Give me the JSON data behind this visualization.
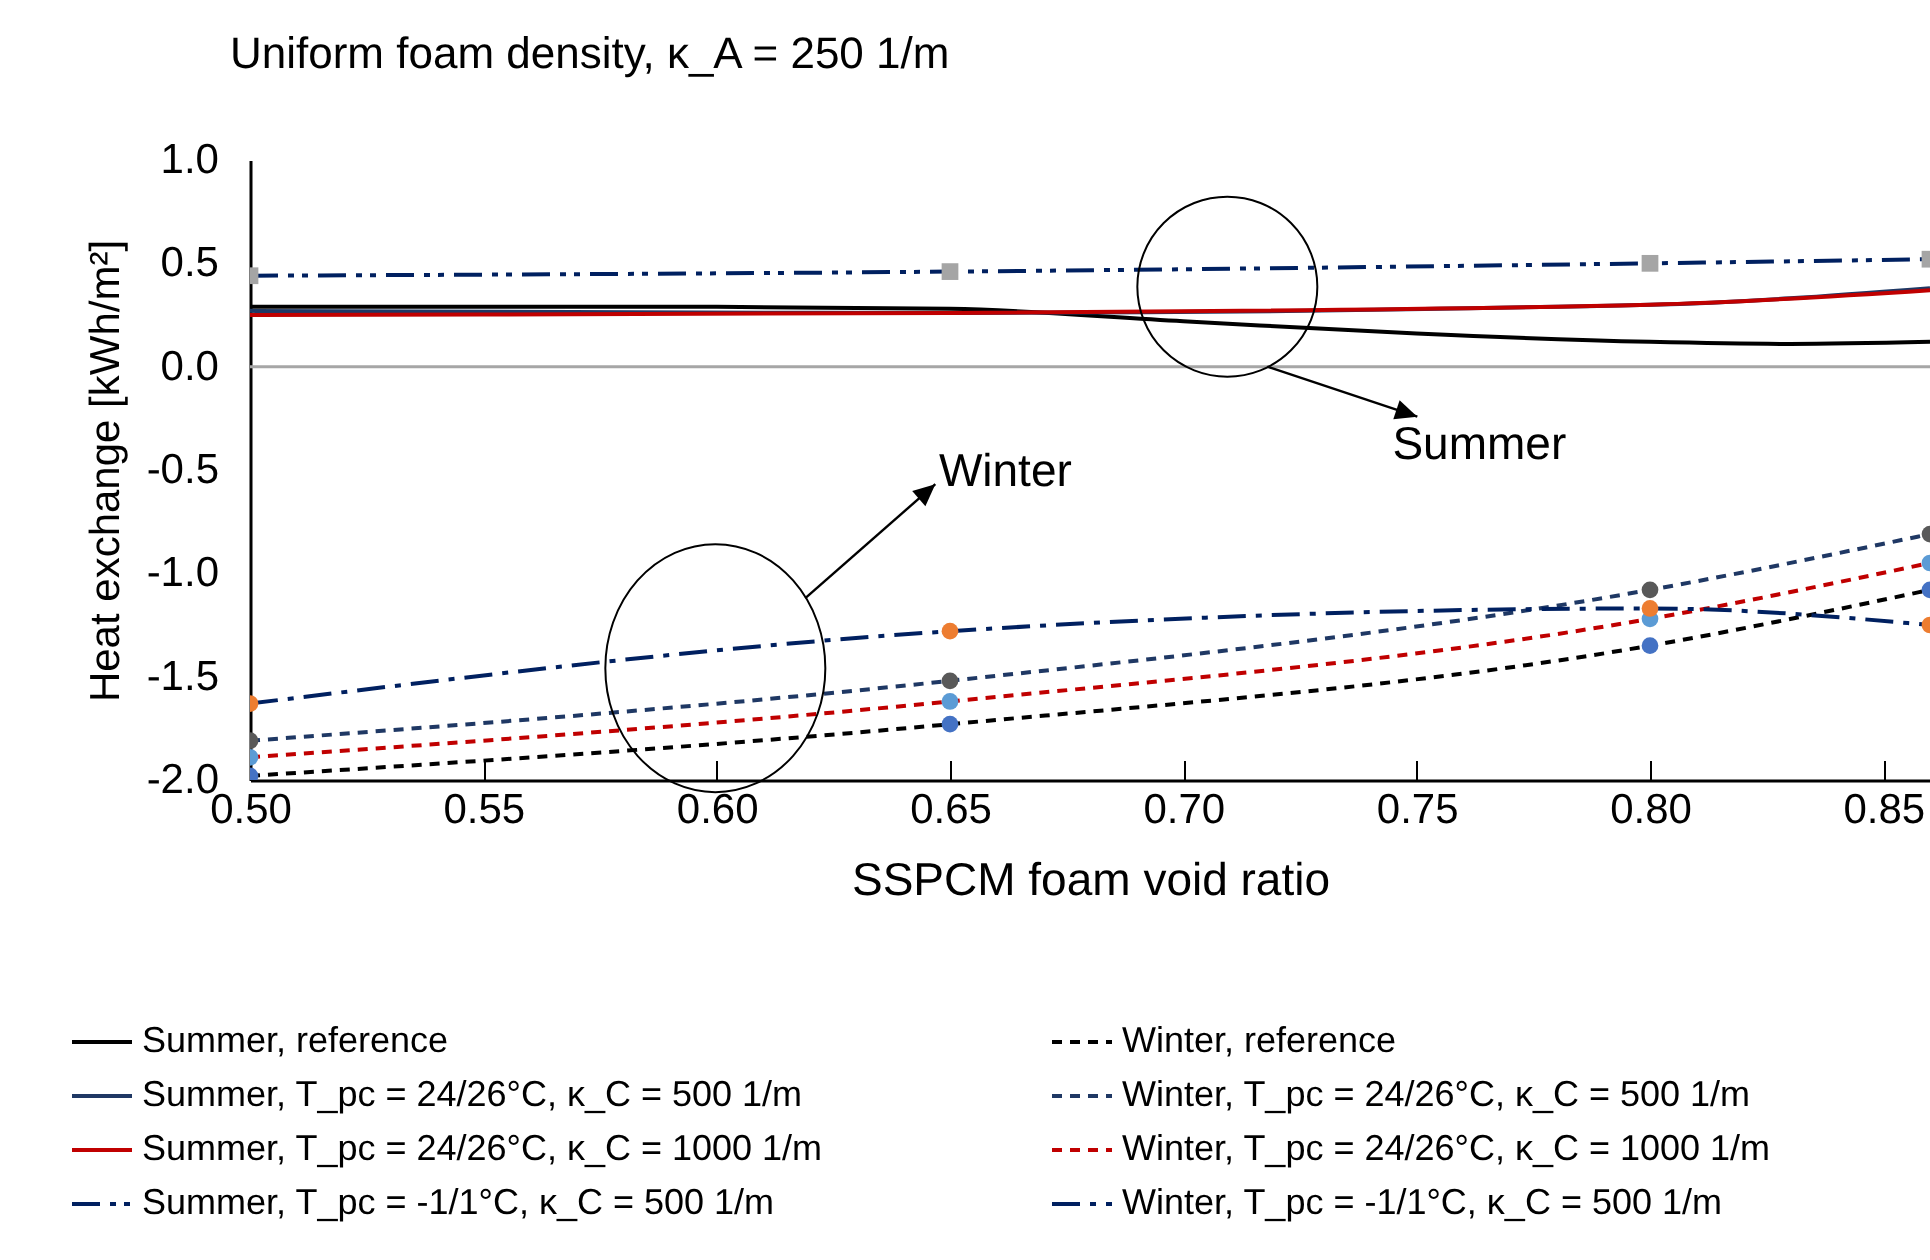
{
  "chart_data": {
    "type": "line",
    "title": "Uniform foam density, κ_A = 250 1/m",
    "xlabel": "SSPCM foam void ratio",
    "ylabel": "Heat exchange [kWh/m²]",
    "xlim": [
      0.5,
      0.86
    ],
    "xticks": [
      {
        "value": 0.5,
        "label": "0.50"
      },
      {
        "value": 0.55,
        "label": "0.55"
      },
      {
        "value": 0.6,
        "label": "0.60"
      },
      {
        "value": 0.65,
        "label": "0.65"
      },
      {
        "value": 0.7,
        "label": "0.70"
      },
      {
        "value": 0.75,
        "label": "0.75"
      },
      {
        "value": 0.8,
        "label": "0.80"
      },
      {
        "value": 0.85,
        "label": "0.85"
      }
    ],
    "ylim": [
      -2,
      1
    ],
    "yticks": [
      {
        "value": -2,
        "label": "-2.0"
      },
      {
        "value": -1.5,
        "label": "-1.5"
      },
      {
        "value": -1,
        "label": "-1.0"
      },
      {
        "value": -0.5,
        "label": "-0.5"
      },
      {
        "value": 0,
        "label": "0.0"
      },
      {
        "value": 0.5,
        "label": "0.5"
      },
      {
        "value": 1,
        "label": "1.0"
      }
    ],
    "grid": false,
    "legend": "bottom",
    "ref_lines": [
      {
        "axis": "y",
        "value": 0,
        "color": "#a6a6a6"
      }
    ],
    "annotations": [
      {
        "text": "Summer",
        "x": 0.718,
        "y": 0.0
      },
      "Winter"
    ],
    "series": [
      {
        "name": "Summer, reference",
        "color": "#000000",
        "line_style": "solid",
        "marker": "none",
        "x": [
          0.5,
          0.55,
          0.6,
          0.65,
          0.7,
          0.75,
          0.8,
          0.83,
          0.86
        ],
        "values": [
          0.29,
          0.29,
          0.29,
          0.28,
          0.22,
          0.16,
          0.12,
          0.11,
          0.12
        ]
      },
      {
        "name": "Summer, T_pc = 24/26°C, κ_C = 500 1/m",
        "color": "#1f3864",
        "line_style": "solid",
        "marker": "none",
        "x": [
          0.5,
          0.65,
          0.8,
          0.86
        ],
        "values": [
          0.27,
          0.26,
          0.3,
          0.38
        ]
      },
      {
        "name": "Summer, T_pc = 24/26°C, κ_C = 1000 1/m",
        "color": "#c00000",
        "line_style": "solid",
        "marker": "none",
        "x": [
          0.5,
          0.65,
          0.8,
          0.86
        ],
        "values": [
          0.25,
          0.26,
          0.3,
          0.37
        ]
      },
      {
        "name": "Summer, T_pc = -1/1°C, κ_C = 500 1/m",
        "color": "#002060",
        "colors": [
          "#a5a5a5",
          "#a5a5a5",
          "#a5a5a5",
          "#a5a5a5"
        ],
        "line_style": "dashdotdot",
        "marker": "square",
        "x": [
          0.5,
          0.65,
          0.8,
          0.86
        ],
        "values": [
          0.44,
          0.46,
          0.5,
          0.52
        ]
      },
      {
        "name": "Winter, reference",
        "color": "#000000",
        "colors": [
          "#4472c4",
          "#4472c4",
          "#4472c4",
          "#4472c4"
        ],
        "line_style": "dashed",
        "marker": "circle",
        "x": [
          0.5,
          0.65,
          0.8,
          0.86
        ],
        "values": [
          -1.98,
          -1.73,
          -1.35,
          -1.08
        ]
      },
      {
        "name": "Winter, T_pc = 24/26°C, κ_C = 500 1/m",
        "color": "#1f3864",
        "colors": [
          "#595959",
          "#595959",
          "#595959",
          "#595959"
        ],
        "line_style": "dashed",
        "marker": "circle",
        "x": [
          0.5,
          0.65,
          0.8,
          0.86
        ],
        "values": [
          -1.81,
          -1.52,
          -1.08,
          -0.81
        ]
      },
      {
        "name": "Winter, T_pc = 24/26°C, κ_C = 1000 1/m",
        "color": "#c00000",
        "colors": [
          "#5b9bd5",
          "#5b9bd5",
          "#5b9bd5",
          "#5b9bd5"
        ],
        "line_style": "dashed",
        "marker": "circle",
        "x": [
          0.5,
          0.65,
          0.8,
          0.86
        ],
        "values": [
          -1.89,
          -1.62,
          -1.22,
          -0.95
        ]
      },
      {
        "name": "Winter, T_pc = -1/1°C, κ_C = 500 1/m",
        "color": "#002060",
        "colors": [
          "#ed7d31",
          "#ed7d31",
          "#ed7d31",
          "#ed7d31"
        ],
        "line_style": "dashdot",
        "marker": "circle",
        "x": [
          0.5,
          0.65,
          0.8,
          0.86
        ],
        "values": [
          -1.63,
          -1.28,
          -1.17,
          -1.25
        ]
      }
    ]
  }
}
